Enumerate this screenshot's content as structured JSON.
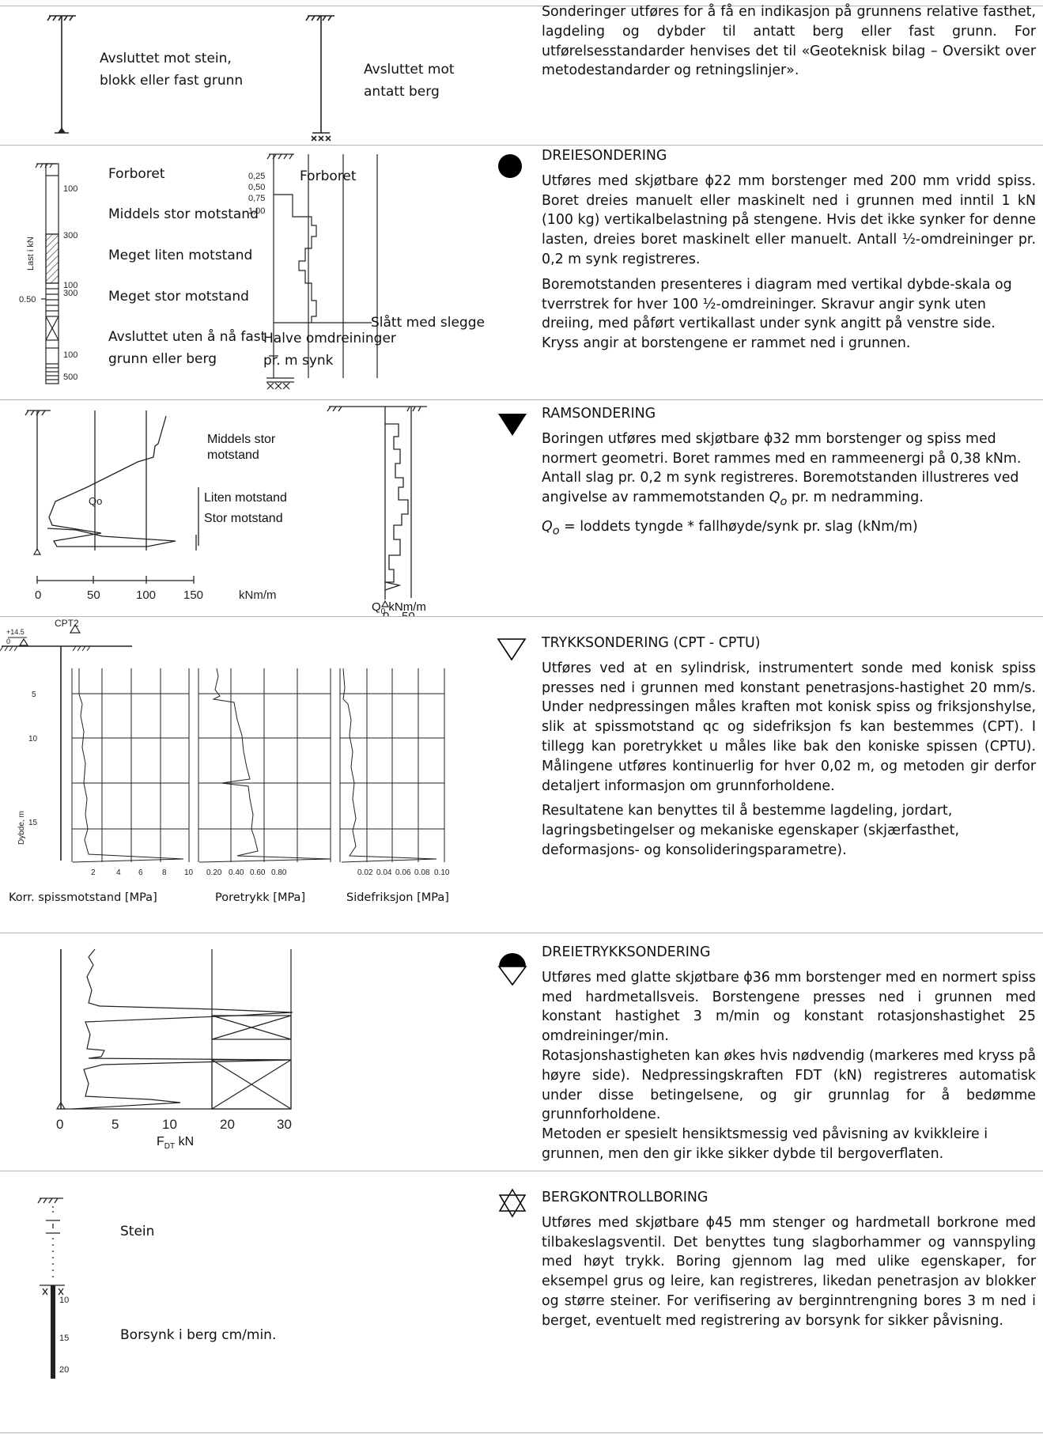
{
  "intro": {
    "stone_label": "Avsluttet mot stein, blokk eller fast grunn",
    "rock_label": "Avsluttet mot antatt berg",
    "text": "Sonderinger utføres for å få en indikasjon på grunnens relative fasthet, lagdeling og dybder til antatt berg eller fast grunn. For utførelsesstandarder henvises det til «Geoteknisk bilag – Oversikt over metodestandarder og retningslinjer»."
  },
  "dreiesondering": {
    "title": "DREIESONDERING",
    "para1": "Utføres med skjøtbare ϕ22 mm borstenger med 200 mm vridd spiss. Boret dreies manuelt eller maskinelt ned i grunnen med inntil 1 kN (100 kg) vertikalbelastning på stengene. Hvis det ikke synker for denne lasten, dreies boret maskinelt eller manuelt. Antall ½-omdreininger pr. 0,2 m synk registreres.",
    "para2": "Boremotstanden presenteres i diagram med vertikal dybde-skala og tverrstrek for hver 100 ½-omdreininger. Skravur angir synk uten dreiing, med påført vertikallast under synk angitt på venstre side. Kryss angir at borstengene er rammet ned i grunnen.",
    "legend": [
      "Forboret",
      "Middels stor motstand",
      "Meget liten motstand",
      "Meget stor motstand",
      "Avsluttet uten å nå fast grunn eller berg"
    ],
    "col_numbers": [
      "100",
      "300",
      "100",
      "300",
      "100",
      "500"
    ],
    "axis_label": "Last i kN",
    "axis_value": "0.50",
    "right_ticks": [
      "0,25",
      "0,50",
      "0,75",
      "1,00"
    ],
    "right_forboret": "Forboret",
    "slag_label": "Slått med slegge",
    "bottom_label": "Halve omdreininger pr. m synk"
  },
  "ramsondering": {
    "title": "RAMSONDERING",
    "para1": "Boringen utføres med skjøtbare ϕ32 mm borstenger og spiss med normert geometri. Boret rammes med en rammeenergi på 0,38 kNm. Antall slag pr. 0,2 m synk registreres. Boremotstanden illustreres ved angivelse av rammemotstanden",
    "q_sym": "Q",
    "q_sub": "o",
    "para1_end": " pr. m nedramming.",
    "formula_rest": " = loddets tyngde * fallhøyde/synk pr. slag (kNm/m)",
    "legend": [
      "Middels stor motstand",
      "Liten motstand",
      "Stor motstand"
    ],
    "curve_label": "Qo",
    "ticks": [
      "0",
      "50",
      "100",
      "150"
    ],
    "unit": "kNm/m",
    "small_ticks": [
      "0",
      "50"
    ],
    "small_unit_main": "Q",
    "small_unit_sub": "0",
    "small_unit_rest": " kNm/m"
  },
  "trykksondering": {
    "title": "TRYKKSONDERING (CPT - CPTU)",
    "para1": "Utføres ved at en sylindrisk, instrumentert sonde med konisk spiss presses ned i grunnen med konstant penetrasjons-hastighet 20 mm/s. Under nedpressingen måles kraften mot konisk spiss og friksjonshylse, slik at spissmotstand qc og sidefriksjon fs kan bestemmes (CPT). I tillegg kan poretrykket u måles like bak den koniske spissen (CPTU). Målingene utføres kontinuerlig for hver 0,02 m, og metoden gir derfor detaljert informasjon om grunnforholdene.",
    "para2": "Resultatene kan benyttes til å bestemme lagdeling, jordart, lagringsbetingelser og mekaniske egenskaper (skjærfasthet, deformasjons- og konsolideringsparametre).",
    "point": "CPT2",
    "elev": "+14.5",
    "zero": "0",
    "depth_label": "Dybde, m",
    "depth_ticks": [
      "5",
      "10",
      "15"
    ],
    "ticks1": [
      "2",
      "4",
      "6",
      "8",
      "10"
    ],
    "ticks2": [
      "0.20",
      "0.40",
      "0.60",
      "0.80"
    ],
    "ticks3": [
      "0.02",
      "0.04",
      "0.06",
      "0.08",
      "0.10"
    ],
    "label1": "Korr. spissmotstand [MPa]",
    "label2": "Poretrykk [MPa]",
    "label3": "Sidefriksjon [MPa]"
  },
  "dreietrykk": {
    "title": "DREIETRYKKSONDERING",
    "para1": "Utføres med glatte skjøtbare ϕ36 mm borstenger med en normert spiss med hardmetallsveis. Borstengene presses ned i grunnen med konstant hastighet 3 m/min og konstant rotasjonshastighet 25 omdreininger/min.",
    "para2": "Rotasjonshastigheten kan økes hvis nødvendig (markeres med kryss på høyre side). Nedpressingskraften FDT (kN) registreres automatisk under disse betingelsene, og gir grunnlag for å bedømme grunnforholdene.",
    "para3": "Metoden er spesielt hensiktsmessig ved påvisning av kvikkleire i grunnen, men den gir ikke sikker dybde til bergoverflaten.",
    "ticks": [
      "0",
      "5",
      "10",
      "20",
      "30"
    ],
    "unit_main": "F",
    "unit_sub": "DT",
    "unit_rest": " kN"
  },
  "bergkontroll": {
    "title": "BERGKONTROLLBORING",
    "para1": "Utføres med skjøtbare ϕ45 mm stenger og hardmetall borkrone med tilbakeslagsventil. Det benyttes tung slagborhammer og vannspyling med høyt trykk. Boring gjennom lag med ulike egenskaper, for eksempel grus og leire, kan registreres, likedan penetrasjon av blokker og større steiner. For verifisering av berginntrengning bores 3 m ned i berget, eventuelt med registrering av borsynk for sikker påvisning.",
    "stein_label": "Stein",
    "borsynk_label": "Borsynk i berg cm/min.",
    "ticks": [
      "10",
      "15",
      "20"
    ]
  }
}
